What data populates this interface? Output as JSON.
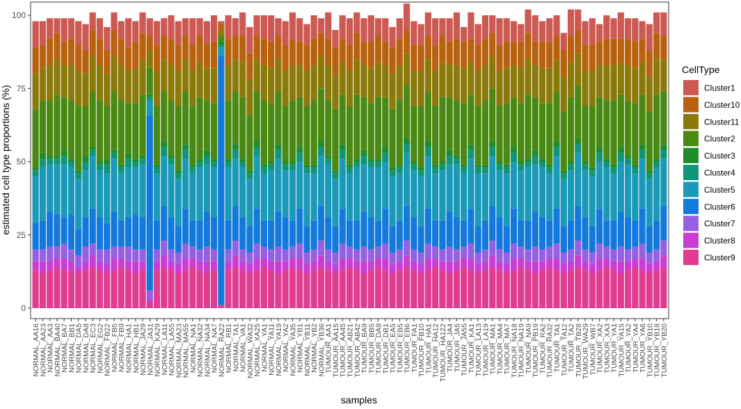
{
  "chart_data": {
    "type": "bar",
    "stacked": true,
    "xlabel": "samples",
    "ylabel": "estimated cell type proportions (%)",
    "ylim": [
      0,
      100
    ],
    "y_ticks": [
      0,
      25,
      50,
      75,
      100
    ],
    "grid": false,
    "legend": {
      "title": "CellType",
      "position": "right"
    },
    "series_colors": {
      "Cluster1": "#CC5A52",
      "Cluster10": "#B8620F",
      "Cluster11": "#8B7A0A",
      "Cluster2": "#4A8A14",
      "Cluster3": "#1E8C2C",
      "Cluster4": "#10957A",
      "Cluster5": "#1A9AB8",
      "Cluster6": "#1479DC",
      "Cluster7": "#9560E2",
      "Cluster8": "#C93DD3",
      "Cluster9": "#E03C90"
    },
    "categories": [
      "NORMAL_AA16",
      "NORMAL_AA23",
      "NORMAL_AA3",
      "NORMAL_BA40",
      "NORMAL_BA7",
      "NORMAL_BB1",
      "NORMAL_DA5",
      "NORMAL_DA8",
      "NORMAL_EC3",
      "NORMAL_EG2",
      "NORMAL_FB22",
      "NORMAL_FB5",
      "NORMAL_FB9",
      "NORMAL_HA1",
      "NORMAL_HB1",
      "NORMAL_JA29",
      "NORMAL_JA31",
      "NORMAL_KA29",
      "NORMAL_LA11",
      "NORMAL_LA55",
      "NORMAL_MA23",
      "NORMAL_MA55",
      "NORMAL_NA1",
      "NORMAL_NA32",
      "NORMAL_NA34",
      "NORMAL_NA7",
      "NORMAL_RA22",
      "NORMAL_RB1",
      "NORMAL_TA1",
      "NORMAL_VA1",
      "NORMAL_WA32",
      "NORMAL_XA25",
      "NORMAL_YA1",
      "NORMAL_YA11",
      "NORMAL_YA19",
      "NORMAL_YA2",
      "NORMAL_YA35",
      "NORMAL_YB1",
      "NORMAL_YB11",
      "NORMAL_YB2",
      "NORMAL_YB36",
      "TUMOUR_AA1",
      "TUMOUR_AA15",
      "TUMOUR_AA45",
      "TUMOUR_AB21",
      "TUMOUR_AB42",
      "TUMOUR_BA9",
      "TUMOUR_BB5",
      "TUMOUR_DA9",
      "TUMOUR_DB1",
      "TUMOUR_EA5",
      "TUMOUR_EB5",
      "TUMOUR_EB6",
      "TUMOUR_FA1",
      "TUMOUR_FB10",
      "TUMOUR_HA1",
      "TUMOUR_HA12",
      "TUMOUR_HA122",
      "TUMOUR_JA4",
      "TUMOUR_JA5",
      "TUMOUR_JA55",
      "TUMOUR_KA1",
      "TUMOUR_LA13",
      "TUMOUR_LA19",
      "TUMOUR_MA1",
      "TUMOUR_MA4",
      "TUMOUR_MA7",
      "TUMOUR_NA18",
      "TUMOUR_NA19",
      "TUMOUR_NA9",
      "TUMOUR_PB19",
      "TUMOUR_RA2",
      "TUMOUR_RA32",
      "TUMOUR_TA1",
      "TUMOUR_TA12",
      "TUMOUR_TA2",
      "TUMOUR_TB28",
      "TUMOUR_WA29",
      "TUMOUR_WB7",
      "TUMOUR_XA2",
      "TUMOUR_XA3",
      "TUMOUR_YA1",
      "TUMOUR_YA15",
      "TUMOUR_YA2",
      "TUMOUR_YA4",
      "TUMOUR_YA6",
      "TUMOUR_YB10",
      "TUMOUR_YB18",
      "TUMOUR_YB20"
    ],
    "series": [
      {
        "name": "Cluster9",
        "values": [
          13,
          12,
          13,
          14,
          13,
          13,
          12,
          13,
          14,
          13,
          12,
          13,
          14,
          13,
          12,
          13,
          2,
          13,
          14,
          13,
          12,
          13,
          14,
          13,
          12,
          13,
          1,
          13,
          14,
          13,
          12,
          13,
          14,
          13,
          12,
          13,
          14,
          13,
          12,
          13,
          14,
          13,
          12,
          13,
          14,
          13,
          12,
          13,
          14,
          13,
          12,
          13,
          14,
          13,
          12,
          13,
          14,
          13,
          12,
          13,
          14,
          13,
          12,
          13,
          14,
          13,
          12,
          13,
          14,
          13,
          12,
          13,
          14,
          13,
          12,
          13,
          14,
          13,
          12,
          13,
          14,
          13,
          12,
          13,
          14,
          13,
          12,
          13,
          14
        ]
      },
      {
        "name": "Cluster8",
        "values": [
          3,
          4,
          3,
          3,
          4,
          3,
          2,
          3,
          4,
          3,
          3,
          4,
          3,
          3,
          4,
          3,
          1,
          3,
          4,
          3,
          3,
          4,
          3,
          3,
          4,
          3,
          0,
          3,
          4,
          3,
          3,
          4,
          3,
          3,
          4,
          3,
          3,
          4,
          3,
          3,
          4,
          3,
          3,
          4,
          3,
          3,
          4,
          3,
          3,
          4,
          3,
          3,
          4,
          3,
          3,
          4,
          3,
          3,
          4,
          3,
          3,
          4,
          3,
          3,
          4,
          3,
          3,
          4,
          3,
          3,
          4,
          3,
          3,
          4,
          3,
          3,
          4,
          3,
          3,
          4,
          3,
          3,
          4,
          3,
          3,
          4,
          3,
          3,
          4
        ]
      },
      {
        "name": "Cluster7",
        "values": [
          4,
          4,
          5,
          4,
          5,
          4,
          4,
          5,
          4,
          4,
          5,
          4,
          4,
          5,
          4,
          4,
          3,
          4,
          5,
          4,
          4,
          5,
          4,
          4,
          5,
          4,
          0,
          4,
          5,
          4,
          4,
          5,
          4,
          4,
          5,
          4,
          4,
          5,
          4,
          4,
          5,
          4,
          4,
          5,
          4,
          4,
          5,
          4,
          4,
          5,
          4,
          4,
          5,
          4,
          4,
          5,
          4,
          4,
          5,
          4,
          4,
          5,
          4,
          4,
          5,
          4,
          4,
          5,
          4,
          4,
          5,
          4,
          4,
          5,
          4,
          4,
          5,
          4,
          4,
          5,
          4,
          4,
          5,
          4,
          4,
          5,
          4,
          4,
          5
        ]
      },
      {
        "name": "Cluster6",
        "values": [
          9,
          10,
          12,
          11,
          9,
          12,
          9,
          10,
          12,
          11,
          9,
          12,
          9,
          10,
          12,
          11,
          60,
          10,
          12,
          11,
          9,
          12,
          9,
          10,
          12,
          11,
          85,
          10,
          12,
          11,
          9,
          12,
          9,
          10,
          12,
          11,
          9,
          12,
          9,
          10,
          12,
          11,
          9,
          12,
          9,
          10,
          12,
          11,
          9,
          12,
          9,
          10,
          12,
          11,
          9,
          12,
          9,
          10,
          12,
          11,
          9,
          12,
          9,
          10,
          12,
          11,
          9,
          12,
          9,
          10,
          12,
          11,
          9,
          12,
          9,
          10,
          12,
          11,
          9,
          12,
          9,
          10,
          12,
          11,
          9,
          12,
          9,
          10,
          12
        ]
      },
      {
        "name": "Cluster5",
        "values": [
          16,
          18,
          16,
          17,
          18,
          16,
          17,
          16,
          18,
          16,
          17,
          18,
          16,
          17,
          16,
          18,
          5,
          16,
          17,
          18,
          16,
          17,
          16,
          18,
          16,
          17,
          3,
          18,
          16,
          17,
          16,
          18,
          16,
          17,
          18,
          16,
          17,
          16,
          18,
          16,
          17,
          18,
          16,
          17,
          16,
          18,
          16,
          17,
          18,
          16,
          17,
          16,
          18,
          16,
          17,
          18,
          16,
          17,
          16,
          18,
          16,
          17,
          18,
          16,
          17,
          16,
          18,
          16,
          17,
          18,
          16,
          17,
          16,
          18,
          16,
          17,
          18,
          16,
          17,
          16,
          18,
          16,
          17,
          18,
          16,
          17,
          16,
          18,
          16
        ]
      },
      {
        "name": "Cluster4",
        "values": [
          2,
          3,
          2,
          2,
          3,
          2,
          2,
          3,
          2,
          2,
          3,
          2,
          2,
          3,
          2,
          2,
          1,
          2,
          3,
          2,
          2,
          3,
          2,
          2,
          3,
          2,
          1,
          2,
          3,
          2,
          2,
          3,
          2,
          2,
          3,
          2,
          2,
          3,
          2,
          2,
          3,
          2,
          2,
          3,
          2,
          2,
          3,
          2,
          2,
          3,
          2,
          2,
          3,
          2,
          2,
          3,
          2,
          2,
          3,
          2,
          2,
          3,
          2,
          2,
          3,
          2,
          2,
          3,
          2,
          2,
          3,
          2,
          2,
          3,
          2,
          2,
          3,
          2,
          2,
          3,
          2,
          2,
          3,
          2,
          2,
          3,
          2,
          2,
          3
        ]
      },
      {
        "name": "Cluster3",
        "values": [
          1,
          2,
          1,
          1,
          2,
          1,
          1,
          2,
          1,
          1,
          2,
          1,
          1,
          2,
          1,
          1,
          1,
          1,
          2,
          1,
          1,
          2,
          1,
          1,
          2,
          1,
          1,
          1,
          2,
          1,
          1,
          2,
          1,
          1,
          2,
          1,
          1,
          2,
          1,
          1,
          2,
          1,
          1,
          2,
          1,
          1,
          2,
          1,
          1,
          2,
          1,
          1,
          2,
          1,
          1,
          2,
          1,
          1,
          2,
          1,
          1,
          2,
          1,
          1,
          2,
          1,
          1,
          2,
          1,
          1,
          2,
          1,
          1,
          2,
          1,
          1,
          2,
          1,
          1,
          2,
          1,
          1,
          2,
          1,
          1,
          2,
          1,
          1,
          2
        ]
      },
      {
        "name": "Cluster2",
        "values": [
          20,
          18,
          19,
          21,
          18,
          20,
          22,
          17,
          19,
          21,
          18,
          20,
          22,
          17,
          19,
          21,
          9,
          20,
          17,
          19,
          22,
          18,
          20,
          21,
          17,
          19,
          2,
          20,
          18,
          21,
          19,
          17,
          22,
          20,
          18,
          19,
          21,
          17,
          20,
          22,
          18,
          19,
          21,
          17,
          20,
          22,
          18,
          19,
          21,
          17,
          20,
          22,
          18,
          19,
          21,
          17,
          20,
          22,
          18,
          19,
          21,
          17,
          20,
          22,
          18,
          19,
          21,
          17,
          20,
          22,
          18,
          19,
          21,
          17,
          20,
          22,
          18,
          19,
          21,
          17,
          20,
          22,
          18,
          19,
          21,
          17,
          20,
          22,
          18
        ]
      },
      {
        "name": "Cluster11",
        "values": [
          12,
          11,
          12,
          12,
          11,
          12,
          12,
          11,
          12,
          12,
          11,
          12,
          12,
          11,
          12,
          12,
          6,
          12,
          11,
          12,
          12,
          11,
          12,
          12,
          11,
          12,
          2,
          12,
          11,
          12,
          12,
          11,
          12,
          12,
          11,
          12,
          12,
          11,
          12,
          12,
          11,
          12,
          12,
          11,
          12,
          12,
          11,
          12,
          12,
          11,
          12,
          12,
          11,
          12,
          12,
          11,
          12,
          12,
          11,
          12,
          12,
          11,
          12,
          12,
          11,
          12,
          12,
          11,
          12,
          12,
          11,
          12,
          12,
          11,
          12,
          12,
          11,
          12,
          12,
          11,
          12,
          12,
          11,
          12,
          12,
          11,
          12,
          12,
          11
        ]
      },
      {
        "name": "Cluster10",
        "values": [
          9,
          8,
          9,
          9,
          8,
          9,
          9,
          8,
          9,
          9,
          8,
          9,
          9,
          8,
          9,
          9,
          5,
          9,
          8,
          9,
          9,
          8,
          9,
          9,
          8,
          9,
          2,
          9,
          8,
          9,
          9,
          8,
          9,
          9,
          8,
          9,
          9,
          8,
          9,
          9,
          8,
          9,
          9,
          8,
          9,
          9,
          8,
          9,
          9,
          8,
          9,
          9,
          8,
          9,
          9,
          8,
          9,
          9,
          8,
          9,
          9,
          8,
          9,
          9,
          8,
          9,
          9,
          8,
          9,
          9,
          8,
          9,
          9,
          8,
          9,
          9,
          8,
          9,
          9,
          8,
          9,
          9,
          8,
          9,
          9,
          8,
          9,
          9,
          8
        ]
      },
      {
        "name": "Cluster1",
        "values": [
          9,
          8,
          7,
          5,
          8,
          7,
          8,
          9,
          6,
          7,
          8,
          6,
          6,
          10,
          7,
          7,
          6,
          8,
          6,
          8,
          8,
          6,
          9,
          6,
          8,
          9,
          1,
          8,
          6,
          8,
          9,
          7,
          8,
          9,
          6,
          8,
          9,
          8,
          7,
          8,
          5,
          9,
          6,
          8,
          9,
          7,
          8,
          9,
          6,
          8,
          7,
          7,
          9,
          8,
          7,
          8,
          9,
          6,
          8,
          9,
          5,
          9,
          7,
          8,
          6,
          9,
          8,
          7,
          6,
          8,
          9,
          7,
          8,
          7,
          6,
          9,
          7,
          8,
          9,
          6,
          8,
          7,
          9,
          7,
          8,
          6,
          9,
          7,
          8
        ]
      }
    ]
  }
}
